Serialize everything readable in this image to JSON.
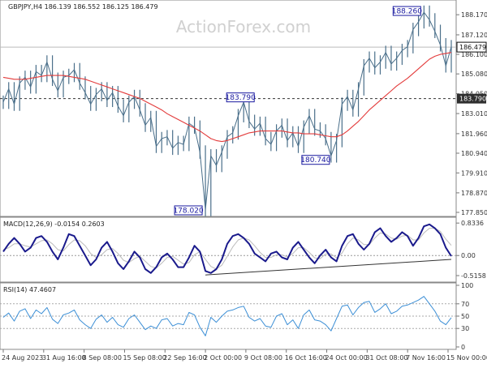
{
  "watermark": "ActionForex.com",
  "chart_data": [
    {
      "type": "line",
      "panel": "price",
      "title": "GBPJPY,H4  186.139 186.552 186.125 186.479",
      "symbol": "GBPJPY",
      "timeframe": "H4",
      "ohlc_header": {
        "open": 186.139,
        "high": 186.552,
        "low": 186.125,
        "close": 186.479
      },
      "ylim": [
        177.85,
        188.6
      ],
      "y_ticks": [
        188.17,
        187.12,
        186.1,
        185.08,
        184.05,
        183.01,
        181.96,
        180.94,
        179.91,
        178.87,
        177.85
      ],
      "y_tick_labels": [
        "188.170",
        "187.120",
        "186.100",
        "185.080",
        "184.050",
        "183.010",
        "181.960",
        "180.940",
        "179.910",
        "178.870",
        "177.850"
      ],
      "current_price": {
        "value": 186.479,
        "label": "186.479",
        "color": "#111111",
        "fill": "#ffffff"
      },
      "level_line": {
        "value": 183.79,
        "label": "183.790",
        "style": "dashed",
        "color": "#333333",
        "tag_fill": "#2e2e2e"
      },
      "price_top_line": {
        "value": 186.479,
        "color": "#bbbbbb"
      },
      "annotations": [
        {
          "label": "188.260",
          "value": 188.26,
          "x_index": 77
        },
        {
          "label": "183.790",
          "value": 183.79,
          "x_index": 44
        },
        {
          "label": "180.740",
          "value": 180.74,
          "x_index": 60
        },
        {
          "label": "178.020",
          "value": 178.02,
          "x_index": 37
        }
      ],
      "series": [
        {
          "name": "price",
          "color": "#4a6f8a",
          "values": [
            183.6,
            184.3,
            183.5,
            184.6,
            184.9,
            184.4,
            185.2,
            185.0,
            185.7,
            184.8,
            184.2,
            184.9,
            185.0,
            185.3,
            184.6,
            184.1,
            183.5,
            184.0,
            184.3,
            183.7,
            184.1,
            183.4,
            182.9,
            183.6,
            183.9,
            183.2,
            182.4,
            182.8,
            181.3,
            181.7,
            181.8,
            181.2,
            181.5,
            181.4,
            182.5,
            182.3,
            181.0,
            178.0,
            180.8,
            180.3,
            181.0,
            181.8,
            182.0,
            182.9,
            183.6,
            182.6,
            182.2,
            182.5,
            181.7,
            181.4,
            182.1,
            182.4,
            181.6,
            182.0,
            181.3,
            182.3,
            182.9,
            182.2,
            182.1,
            181.7,
            180.8,
            181.6,
            183.5,
            183.9,
            183.2,
            184.3,
            185.5,
            185.9,
            185.4,
            185.7,
            186.2,
            185.6,
            185.9,
            186.3,
            186.5,
            187.4,
            187.8,
            188.3,
            187.9,
            187.3,
            186.6,
            185.5,
            186.5
          ]
        },
        {
          "name": "moving average",
          "color": "#e33b3b",
          "values": [
            184.9,
            184.85,
            184.8,
            184.8,
            184.8,
            184.85,
            184.9,
            184.95,
            185.0,
            185.0,
            185.0,
            185.0,
            184.95,
            184.9,
            184.85,
            184.8,
            184.7,
            184.6,
            184.5,
            184.4,
            184.3,
            184.2,
            184.1,
            184.0,
            183.9,
            183.8,
            183.65,
            183.5,
            183.35,
            183.2,
            183.0,
            182.85,
            182.7,
            182.55,
            182.4,
            182.25,
            182.1,
            181.9,
            181.7,
            181.6,
            181.55,
            181.6,
            181.7,
            181.8,
            181.9,
            182.0,
            182.05,
            182.1,
            182.1,
            182.1,
            182.1,
            182.1,
            182.05,
            182.0,
            182.0,
            181.95,
            181.95,
            181.95,
            181.9,
            181.85,
            181.8,
            181.8,
            181.9,
            182.1,
            182.35,
            182.6,
            182.9,
            183.2,
            183.45,
            183.7,
            183.95,
            184.2,
            184.45,
            184.65,
            184.85,
            185.1,
            185.35,
            185.6,
            185.85,
            186.0,
            186.1,
            186.15,
            186.2
          ]
        }
      ]
    },
    {
      "type": "line",
      "panel": "macd",
      "title": "MACD(12,26,9) -0.0154 0.2603",
      "macd_value": -0.0154,
      "signal_value": 0.2603,
      "ylim": [
        -0.62,
        0.9
      ],
      "y_ticks": [
        0.8336,
        0.0,
        -0.5158
      ],
      "y_tick_labels": [
        "0.8336",
        "0.00",
        "-0.5158"
      ],
      "zero_line": 0.0,
      "trend_line": {
        "from": {
          "x_index": 37,
          "value": -0.5
        },
        "to": {
          "x_index": 82,
          "value": -0.1
        }
      },
      "series": [
        {
          "name": "MACD",
          "color": "#1a1a8c",
          "values": [
            0.1,
            0.3,
            0.45,
            0.3,
            0.1,
            0.2,
            0.45,
            0.5,
            0.35,
            0.1,
            -0.1,
            0.2,
            0.55,
            0.5,
            0.25,
            0.0,
            -0.25,
            -0.1,
            0.2,
            0.35,
            0.1,
            -0.2,
            -0.35,
            -0.15,
            0.1,
            -0.05,
            -0.35,
            -0.45,
            -0.3,
            -0.05,
            0.05,
            -0.1,
            -0.3,
            -0.3,
            -0.05,
            0.25,
            0.1,
            -0.4,
            -0.45,
            -0.35,
            -0.1,
            0.3,
            0.5,
            0.55,
            0.45,
            0.3,
            0.05,
            -0.05,
            -0.15,
            0.05,
            0.1,
            -0.05,
            -0.1,
            0.2,
            0.35,
            0.15,
            -0.05,
            -0.2,
            0.0,
            0.15,
            -0.05,
            -0.15,
            0.25,
            0.5,
            0.55,
            0.3,
            0.15,
            0.3,
            0.6,
            0.7,
            0.5,
            0.35,
            0.45,
            0.6,
            0.5,
            0.25,
            0.45,
            0.75,
            0.8,
            0.7,
            0.55,
            0.2,
            -0.0154
          ]
        },
        {
          "name": "Signal",
          "color": "#bbbbbb",
          "values": [
            0.15,
            0.2,
            0.3,
            0.3,
            0.25,
            0.22,
            0.3,
            0.38,
            0.4,
            0.3,
            0.15,
            0.12,
            0.28,
            0.4,
            0.38,
            0.25,
            0.05,
            -0.05,
            0.02,
            0.15,
            0.18,
            0.05,
            -0.12,
            -0.18,
            -0.08,
            -0.02,
            -0.15,
            -0.28,
            -0.32,
            -0.2,
            -0.05,
            -0.02,
            -0.12,
            -0.22,
            -0.18,
            0.02,
            0.1,
            -0.1,
            -0.28,
            -0.35,
            -0.25,
            -0.02,
            0.22,
            0.4,
            0.45,
            0.4,
            0.25,
            0.08,
            -0.05,
            -0.05,
            0.02,
            0.02,
            -0.04,
            0.05,
            0.2,
            0.2,
            0.08,
            -0.06,
            -0.08,
            0.04,
            0.04,
            -0.06,
            0.06,
            0.3,
            0.45,
            0.4,
            0.28,
            0.28,
            0.45,
            0.58,
            0.55,
            0.45,
            0.42,
            0.5,
            0.52,
            0.4,
            0.4,
            0.58,
            0.7,
            0.7,
            0.62,
            0.42,
            0.2603
          ]
        }
      ]
    },
    {
      "type": "line",
      "panel": "rsi",
      "title": "RSI(14) 47.4607",
      "rsi_value": 47.4607,
      "ylim": [
        0,
        100
      ],
      "y_ticks": [
        100,
        70,
        50,
        30,
        0
      ],
      "y_tick_labels": [
        "100",
        "70",
        "50",
        "30",
        "0"
      ],
      "levels": [
        70,
        50,
        30
      ],
      "series": [
        {
          "name": "RSI",
          "color": "#3c8fd6",
          "values": [
            48,
            55,
            42,
            58,
            62,
            46,
            60,
            54,
            64,
            45,
            38,
            52,
            55,
            60,
            44,
            36,
            30,
            45,
            52,
            40,
            48,
            36,
            32,
            46,
            52,
            40,
            28,
            34,
            30,
            44,
            46,
            34,
            38,
            36,
            56,
            52,
            32,
            18,
            48,
            40,
            50,
            58,
            60,
            64,
            66,
            48,
            42,
            46,
            34,
            32,
            50,
            54,
            36,
            44,
            30,
            52,
            60,
            44,
            42,
            36,
            26,
            46,
            66,
            68,
            52,
            64,
            72,
            74,
            56,
            62,
            70,
            54,
            58,
            66,
            68,
            72,
            76,
            82,
            70,
            58,
            42,
            36,
            47.46
          ]
        }
      ]
    }
  ],
  "x_axis": {
    "labels": [
      "24 Aug 2023",
      "31 Aug 16:00",
      "8 Sep 08:00",
      "15 Sep 08:00",
      "22 Sep 16:00",
      "2 Oct 00:00",
      "9 Oct 08:00",
      "16 Oct 16:00",
      "24 Oct 00:00",
      "31 Oct 08:00",
      "7 Nov 16:00",
      "15 Nov 00:00"
    ]
  }
}
